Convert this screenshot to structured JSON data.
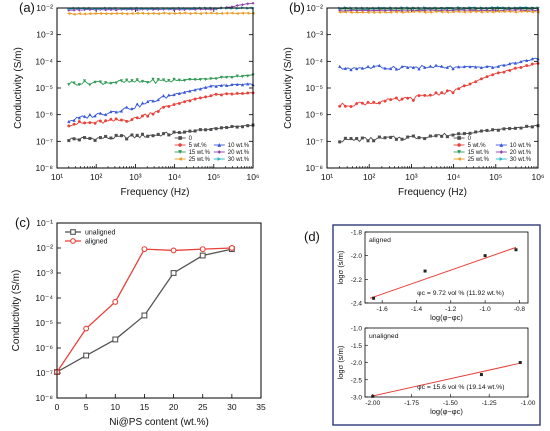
{
  "chart_data": [
    {
      "panel": "(a)",
      "type": "line",
      "xlabel": "Frequency (Hz)",
      "ylabel": "Conductivity (S/m)",
      "xscale": "log",
      "yscale": "log",
      "xlim": [
        10,
        1000000
      ],
      "ylim": [
        1e-08,
        0.01
      ],
      "x_ticks": [
        "10¹",
        "10²",
        "10³",
        "10⁴",
        "10⁵",
        "10⁶"
      ],
      "y_ticks": [
        "10⁻⁸",
        "10⁻⁷",
        "10⁻⁶",
        "10⁻⁵",
        "10⁻⁴",
        "10⁻³",
        "10⁻²"
      ],
      "legend_placement": "bottom-right",
      "series": [
        {
          "name": "0",
          "color": "#4d4d4d",
          "marker": "square",
          "x": [
            20,
            100,
            1000,
            10000,
            100000,
            1000000
          ],
          "y": [
            1.2e-07,
            1.3e-07,
            1.5e-07,
            2e-07,
            3e-07,
            4e-07
          ]
        },
        {
          "name": "5 wt.%",
          "color": "#e8413a",
          "marker": "circle",
          "x": [
            20,
            100,
            1000,
            10000,
            100000,
            1000000
          ],
          "y": [
            4.5e-07,
            5e-07,
            7e-07,
            2.5e-06,
            5.5e-06,
            6.5e-06
          ]
        },
        {
          "name": "10 wt.%",
          "color": "#3757d8",
          "marker": "triangle-up",
          "x": [
            20,
            100,
            1000,
            10000,
            100000,
            1000000
          ],
          "y": [
            6e-07,
            1e-06,
            2e-06,
            6e-06,
            1.2e-05,
            1.4e-05
          ]
        },
        {
          "name": "15 wt.%",
          "color": "#2e9a55",
          "marker": "triangle-down",
          "x": [
            20,
            100,
            1000,
            10000,
            100000,
            1000000
          ],
          "y": [
            1.5e-05,
            1.6e-05,
            1.7e-05,
            1.9e-05,
            2.3e-05,
            3e-05
          ]
        },
        {
          "name": "20 wt.%",
          "color": "#8b3fa8",
          "marker": "diamond",
          "x": [
            20,
            100,
            1000,
            10000,
            100000,
            1000000
          ],
          "y": [
            0.0085,
            0.0086,
            0.0087,
            0.0088,
            0.009,
            0.015
          ]
        },
        {
          "name": "25 wt.%",
          "color": "#e89a25",
          "marker": "triangle-left",
          "x": [
            20,
            100,
            1000,
            10000,
            100000,
            1000000
          ],
          "y": [
            0.006,
            0.0061,
            0.0062,
            0.0063,
            0.0063,
            0.0064
          ]
        },
        {
          "name": "30 wt.%",
          "color": "#2bb7c4",
          "marker": "triangle-right",
          "x": [
            20,
            100,
            1000,
            10000,
            100000,
            1000000
          ],
          "y": [
            0.0095,
            0.0095,
            0.0096,
            0.0097,
            0.0098,
            0.01
          ]
        }
      ]
    },
    {
      "panel": "(b)",
      "type": "line",
      "xlabel": "Frequency (Hz)",
      "ylabel": "Conductivity (S/m)",
      "xscale": "log",
      "yscale": "log",
      "xlim": [
        10,
        1000000
      ],
      "ylim": [
        1e-08,
        0.01
      ],
      "x_ticks": [
        "10¹",
        "10²",
        "10³",
        "10⁴",
        "10⁵",
        "10⁶"
      ],
      "y_ticks": [
        "10⁻⁸",
        "10⁻⁷",
        "10⁻⁶",
        "10⁻⁵",
        "10⁻⁴",
        "10⁻³",
        "10⁻²"
      ],
      "legend_placement": "bottom-right",
      "series": [
        {
          "name": "0",
          "color": "#4d4d4d",
          "marker": "square",
          "x": [
            20,
            100,
            1000,
            10000,
            100000,
            1000000
          ],
          "y": [
            1.1e-07,
            1.2e-07,
            1.4e-07,
            1.8e-07,
            2.7e-07,
            3.8e-07
          ]
        },
        {
          "name": "5 wt.%",
          "color": "#e8413a",
          "marker": "circle",
          "x": [
            20,
            100,
            1000,
            10000,
            100000,
            1000000
          ],
          "y": [
            2.2e-06,
            2.8e-06,
            4e-06,
            8e-06,
            3.5e-05,
            8.5e-05
          ]
        },
        {
          "name": "10 wt.%",
          "color": "#3757d8",
          "marker": "triangle-up",
          "x": [
            20,
            100,
            1000,
            10000,
            100000,
            1000000
          ],
          "y": [
            5.5e-05,
            5.8e-05,
            6e-05,
            6e-05,
            6.2e-05,
            0.00013
          ]
        },
        {
          "name": "15 wt.%",
          "color": "#2e9a55",
          "marker": "triangle-down",
          "x": [
            20,
            100,
            1000,
            10000,
            100000,
            1000000
          ],
          "y": [
            0.009,
            0.009,
            0.0091,
            0.0091,
            0.0092,
            0.0094
          ]
        },
        {
          "name": "20 wt.%",
          "color": "#8b3fa8",
          "marker": "diamond",
          "x": [
            20,
            100,
            1000,
            10000,
            100000,
            1000000
          ],
          "y": [
            0.008,
            0.008,
            0.0081,
            0.0081,
            0.0082,
            0.0083
          ]
        },
        {
          "name": "25 wt.%",
          "color": "#e89a25",
          "marker": "triangle-left",
          "x": [
            20,
            100,
            1000,
            10000,
            100000,
            1000000
          ],
          "y": [
            0.007,
            0.007,
            0.0071,
            0.0071,
            0.0072,
            0.0072
          ]
        },
        {
          "name": "30 wt.%",
          "color": "#2bb7c4",
          "marker": "triangle-right",
          "x": [
            20,
            100,
            1000,
            10000,
            100000,
            1000000
          ],
          "y": [
            0.01,
            0.01,
            0.0101,
            0.0101,
            0.0102,
            0.0102
          ]
        }
      ]
    },
    {
      "panel": "(c)",
      "type": "line",
      "xlabel": "Ni@PS content (wt.%)",
      "ylabel": "Conductivity (S/m)",
      "yscale": "log",
      "xlim": [
        0,
        35
      ],
      "ylim": [
        1e-08,
        0.1
      ],
      "x_ticks": [
        "0",
        "5",
        "10",
        "15",
        "20",
        "25",
        "30",
        "35"
      ],
      "y_ticks": [
        "10⁻⁸",
        "10⁻⁷",
        "10⁻⁶",
        "10⁻⁵",
        "10⁻⁴",
        "10⁻³",
        "10⁻²",
        "10⁻¹"
      ],
      "legend_placement": "top-left",
      "series": [
        {
          "name": "unaligned",
          "color": "#555555",
          "marker": "square-open",
          "x": [
            0,
            5,
            10,
            15,
            20,
            25,
            30
          ],
          "y": [
            1.1e-07,
            5e-07,
            2.2e-06,
            2e-05,
            0.001,
            0.005,
            0.009
          ]
        },
        {
          "name": "aligned",
          "color": "#e8413a",
          "marker": "circle-open",
          "x": [
            0,
            5,
            10,
            15,
            20,
            25,
            30
          ],
          "y": [
            1.1e-07,
            6e-06,
            7e-05,
            0.009,
            0.008,
            0.009,
            0.01
          ]
        }
      ]
    },
    {
      "panel": "(d)",
      "type": "scatter",
      "subplots": [
        {
          "label": "aligned",
          "xlabel": "log(φ−φc)",
          "ylabel": "logσ (s/m)",
          "xlim": [
            -1.7,
            -0.75
          ],
          "ylim": [
            -2.4,
            -1.8
          ],
          "x_ticks": [
            "-1.6",
            "-1.4",
            "-1.2",
            "-1.0",
            "-0.8"
          ],
          "y_ticks": [
            "-2.4",
            "-2.2",
            "-2.0",
            "-1.8"
          ],
          "annotation": "φc = 9.72 vol % (11.92 wt.%)",
          "points_x": [
            -1.65,
            -1.35,
            -1.0,
            -0.82
          ],
          "points_y": [
            -2.36,
            -2.13,
            -2.0,
            -1.95
          ],
          "fit_x": [
            -1.67,
            -0.82
          ],
          "fit_y": [
            -2.36,
            -1.93
          ]
        },
        {
          "label": "unaligned",
          "xlabel": "log(φ−φc)",
          "ylabel": "logσ (s/m)",
          "xlim": [
            -2.05,
            -1.0
          ],
          "ylim": [
            -3.0,
            -1.0
          ],
          "x_ticks": [
            "-2.00",
            "-1.75",
            "-1.50",
            "-1.25",
            "-1.00"
          ],
          "y_ticks": [
            "-3.0",
            "-2.5",
            "-2.0",
            "-1.5",
            "-1.0"
          ],
          "annotation": "φc = 15.6 vol % (19.14 wt.%)",
          "points_x": [
            -2.0,
            -1.3,
            -1.05
          ],
          "points_y": [
            -2.98,
            -2.35,
            -2.0
          ],
          "fit_x": [
            -2.0,
            -1.05
          ],
          "fit_y": [
            -2.97,
            -2.02
          ]
        }
      ]
    }
  ]
}
